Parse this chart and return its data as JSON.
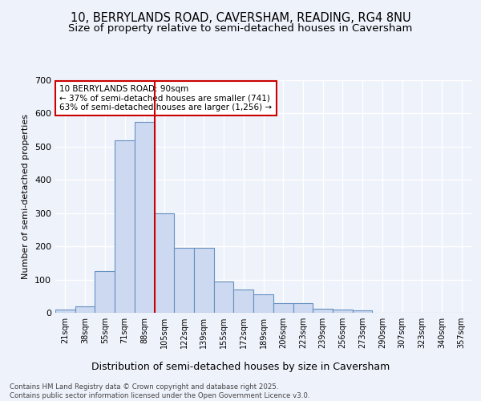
{
  "title1": "10, BERRYLANDS ROAD, CAVERSHAM, READING, RG4 8NU",
  "title2": "Size of property relative to semi-detached houses in Caversham",
  "xlabel": "Distribution of semi-detached houses by size in Caversham",
  "ylabel": "Number of semi-detached properties",
  "bins": [
    "21sqm",
    "38sqm",
    "55sqm",
    "71sqm",
    "88sqm",
    "105sqm",
    "122sqm",
    "139sqm",
    "155sqm",
    "172sqm",
    "189sqm",
    "206sqm",
    "223sqm",
    "239sqm",
    "256sqm",
    "273sqm",
    "290sqm",
    "307sqm",
    "323sqm",
    "340sqm",
    "357sqm"
  ],
  "values": [
    10,
    20,
    125,
    520,
    575,
    300,
    195,
    195,
    95,
    70,
    55,
    30,
    30,
    12,
    10,
    7,
    0,
    0,
    0,
    0,
    0
  ],
  "bar_color": "#ccd9f0",
  "bar_edge_color": "#6690c0",
  "red_line_x": 4.5,
  "annotation_text": "10 BERRYLANDS ROAD: 90sqm\n← 37% of semi-detached houses are smaller (741)\n63% of semi-detached houses are larger (1,256) →",
  "footer": "Contains HM Land Registry data © Crown copyright and database right 2025.\nContains public sector information licensed under the Open Government Licence v3.0.",
  "ylim": [
    0,
    700
  ],
  "yticks": [
    0,
    100,
    200,
    300,
    400,
    500,
    600,
    700
  ],
  "bg_color": "#eef2fb",
  "plot_bg_color": "#eef2fb",
  "grid_color": "#ffffff",
  "title_fontsize": 10.5,
  "subtitle_fontsize": 9.5,
  "annotation_box_color": "#ffffff",
  "annotation_border_color": "#cc0000",
  "red_line_color": "#cc0000"
}
